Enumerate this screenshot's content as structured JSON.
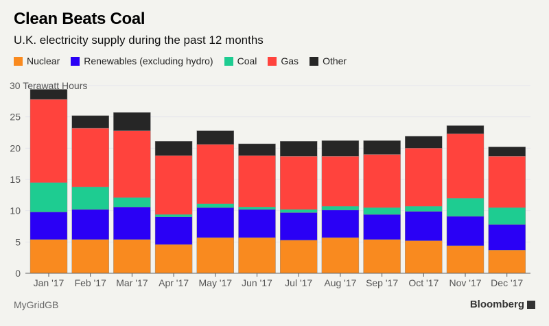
{
  "chart_data": {
    "type": "bar",
    "stacked": true,
    "title": "Clean Beats Coal",
    "subtitle": "U.K. electricity supply during the past 12 months",
    "ylabel": "Terawatt Hours",
    "ylim": [
      0,
      30
    ],
    "yticks": [
      0,
      5,
      10,
      15,
      20,
      25,
      30
    ],
    "grid": true,
    "legend_position": "top-left",
    "categories": [
      "Jan '17",
      "Feb '17",
      "Mar '17",
      "Apr '17",
      "May '17",
      "Jun '17",
      "Jul '17",
      "Aug '17",
      "Sep '17",
      "Oct '17",
      "Nov '17",
      "Dec '17"
    ],
    "series": [
      {
        "name": "Nuclear",
        "color": "#f98a1f",
        "values": [
          5.4,
          5.4,
          5.4,
          4.6,
          5.7,
          5.7,
          5.3,
          5.7,
          5.4,
          5.2,
          4.4,
          3.7
        ]
      },
      {
        "name": "Renewables (excluding hydro)",
        "color": "#2a00f5",
        "values": [
          4.4,
          4.8,
          5.2,
          4.4,
          4.8,
          4.5,
          4.4,
          4.4,
          4.0,
          4.7,
          4.7,
          4.1
        ]
      },
      {
        "name": "Coal",
        "color": "#1ecc91",
        "values": [
          4.7,
          3.6,
          1.5,
          0.4,
          0.6,
          0.4,
          0.5,
          0.6,
          1.1,
          0.8,
          2.9,
          2.7
        ]
      },
      {
        "name": "Gas",
        "color": "#ff433d",
        "values": [
          13.3,
          9.4,
          10.7,
          9.4,
          9.5,
          8.2,
          8.5,
          8.0,
          8.5,
          9.3,
          10.3,
          8.2
        ]
      },
      {
        "name": "Other",
        "color": "#262626",
        "values": [
          1.6,
          2.0,
          2.9,
          2.3,
          2.2,
          1.9,
          2.4,
          2.5,
          2.2,
          1.9,
          1.3,
          1.5
        ]
      }
    ]
  },
  "footer": {
    "source": "MyGridGB",
    "brand": "Bloomberg"
  }
}
